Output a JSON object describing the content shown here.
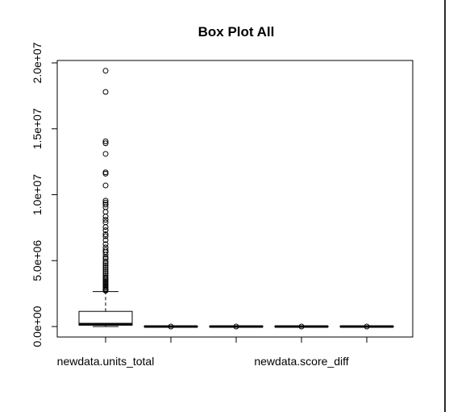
{
  "chart_data": {
    "type": "box",
    "title": "Box Plot All",
    "xlabel": "",
    "ylabel": "",
    "y_ticks": [
      {
        "value": 0,
        "label": "0.0e+00"
      },
      {
        "value": 5000000,
        "label": "5.0e+06"
      },
      {
        "value": 10000000,
        "label": "1.0e+07"
      },
      {
        "value": 15000000,
        "label": "1.5e+07"
      },
      {
        "value": 20000000,
        "label": "2.0e+07"
      }
    ],
    "ylim": [
      -800000,
      20600000
    ],
    "x_tick_labels": [
      {
        "index": 1,
        "label": "newdata.units_total"
      },
      {
        "index": 4,
        "label": "newdata.score_diff"
      }
    ],
    "grid": false,
    "boxes": [
      {
        "index": 1,
        "q1": 100000,
        "median": 180000,
        "q3": 1150000,
        "whisker_low": 0,
        "whisker_high": 2650000,
        "outliers": [
          19400000,
          17800000,
          14050000,
          13900000,
          13100000,
          11700000,
          11600000,
          10700000,
          9550000,
          9400000,
          9250000,
          9050000,
          8700000,
          8350000,
          8100000,
          7900000,
          7550000,
          7300000,
          7000000,
          6850000,
          6550000,
          6250000,
          6000000,
          5800000,
          5650000,
          5450000,
          5250000,
          5150000,
          4950000,
          4800000,
          4650000,
          4500000,
          4350000,
          4200000,
          4050000,
          3900000,
          3750000,
          3650000,
          3550000,
          3450000,
          3350000,
          3250000,
          3150000,
          3050000,
          2950000,
          2850000,
          2780000,
          2720000
        ]
      },
      {
        "index": 2,
        "q1": -30000,
        "median": 0,
        "q3": 30000,
        "whisker_low": -30000,
        "whisker_high": 30000,
        "outliers": [
          0
        ]
      },
      {
        "index": 3,
        "q1": -30000,
        "median": 0,
        "q3": 30000,
        "whisker_low": -30000,
        "whisker_high": 30000,
        "outliers": [
          0
        ]
      },
      {
        "index": 4,
        "q1": -30000,
        "median": 0,
        "q3": 30000,
        "whisker_low": -30000,
        "whisker_high": 30000,
        "outliers": [
          0
        ]
      },
      {
        "index": 5,
        "q1": -30000,
        "median": 0,
        "q3": 30000,
        "whisker_low": -30000,
        "whisker_high": 30000,
        "outliers": [
          0
        ]
      }
    ]
  }
}
